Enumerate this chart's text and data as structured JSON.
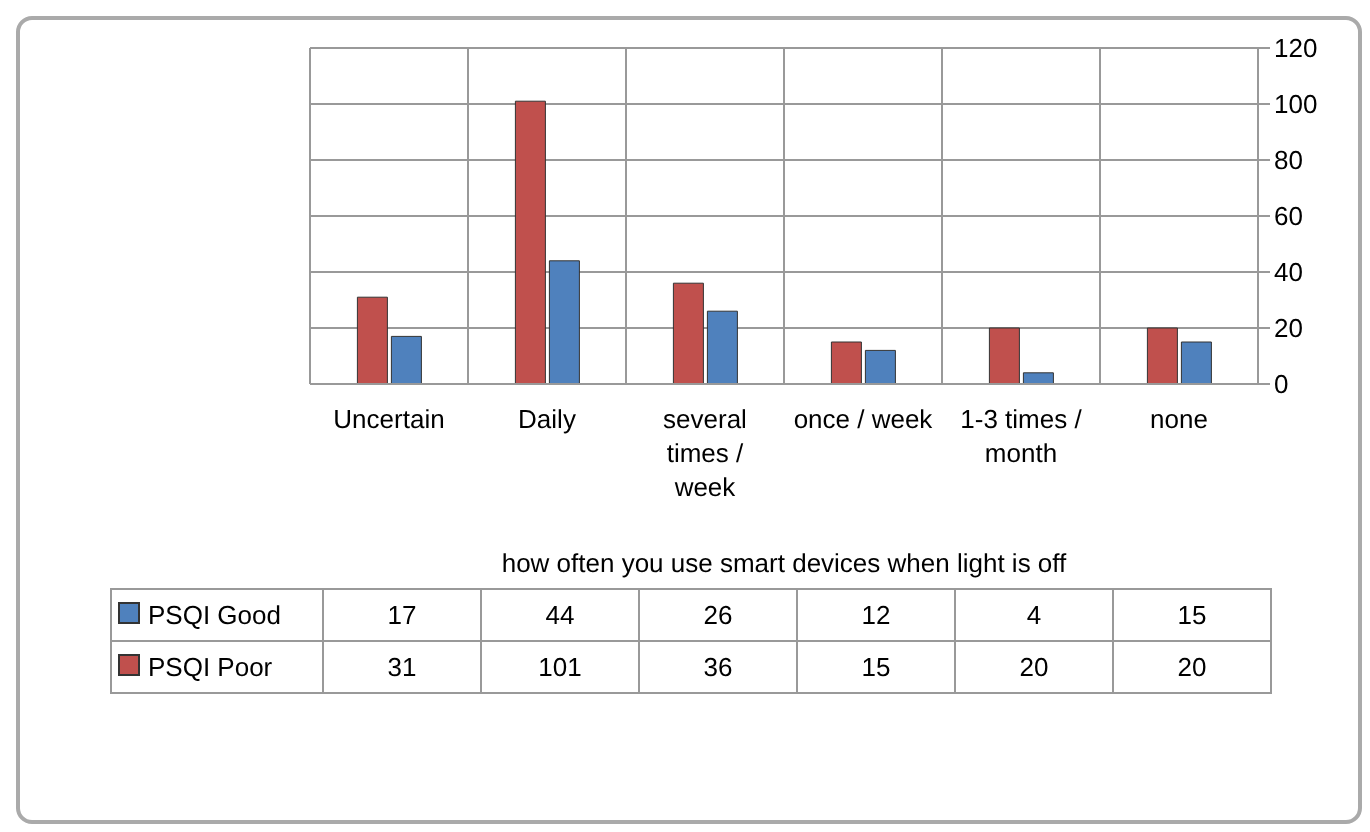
{
  "chart_data": {
    "type": "bar",
    "xlabel": "how often you use smart devices when light is off",
    "categories": [
      "Uncertain",
      "Daily",
      "several times / week",
      "once / week",
      "1-3 times / month",
      "none"
    ],
    "series": [
      {
        "name": "PSQI Poor",
        "color": "#c0504d",
        "values": [
          31,
          101,
          36,
          15,
          20,
          20
        ]
      },
      {
        "name": "PSQI Good",
        "color": "#4f81bd",
        "values": [
          17,
          44,
          26,
          12,
          4,
          15
        ]
      }
    ],
    "ylim": [
      0,
      120
    ],
    "yticks": [
      0,
      20,
      40,
      60,
      80,
      100,
      120
    ],
    "grid": true,
    "legend": "bottom left",
    "data_labels": true
  }
}
